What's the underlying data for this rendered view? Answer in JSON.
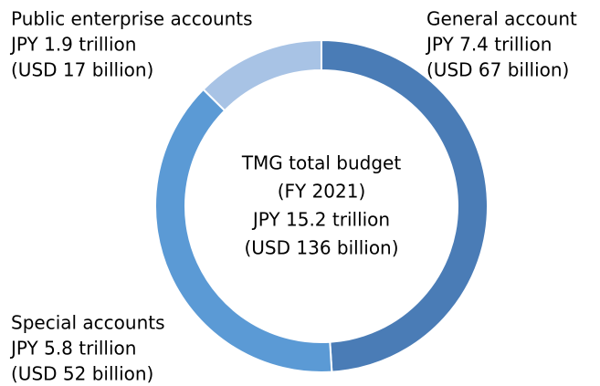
{
  "chart_data": {
    "type": "donut",
    "categories": [
      "General account",
      "Special accounts",
      "Public enterprise accounts"
    ],
    "values": [
      7.4,
      5.8,
      1.9
    ],
    "value_labels": [
      "JPY 7.4 trillion",
      "JPY 5.8 trillion",
      "JPY 1.9 trillion"
    ],
    "usd_labels": [
      "(USD 67 billion)",
      "(USD 52 billion)",
      "(USD 17 billion)"
    ],
    "colors": [
      "#4a7cb6",
      "#5b9ad5",
      "#a8c3e5"
    ],
    "center_labels": [
      "TMG total budget",
      "(FY 2021)",
      "JPY 15.2 trillion",
      "(USD 136 billion)"
    ]
  }
}
